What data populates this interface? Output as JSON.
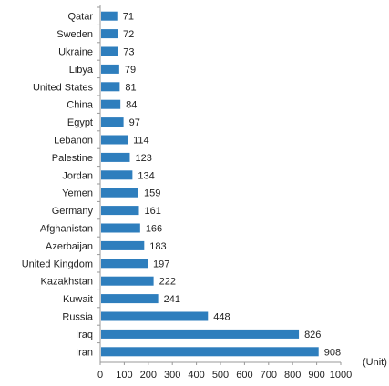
{
  "chart_data": {
    "type": "bar",
    "orientation": "horizontal",
    "categories": [
      "Qatar",
      "Sweden",
      "Ukraine",
      "Libya",
      "United States",
      "China",
      "Egypt",
      "Lebanon",
      "Palestine",
      "Jordan",
      "Yemen",
      "Germany",
      "Afghanistan",
      "Azerbaijan",
      "United Kingdom",
      "Kazakhstan",
      "Kuwait",
      "Russia",
      "Iraq",
      "Iran"
    ],
    "values": [
      71,
      72,
      73,
      79,
      81,
      84,
      97,
      114,
      123,
      134,
      159,
      161,
      166,
      183,
      197,
      222,
      241,
      448,
      826,
      908
    ],
    "title": "",
    "xlabel": "",
    "ylabel": "",
    "unit_label": "(Unit)",
    "xlim": [
      0,
      1000
    ],
    "xticks": [
      0,
      100,
      200,
      300,
      400,
      500,
      600,
      700,
      800,
      900,
      1000
    ],
    "grid": false,
    "legend": "none",
    "bar_color": "#2e7ebd",
    "axis_color": "#999999"
  }
}
